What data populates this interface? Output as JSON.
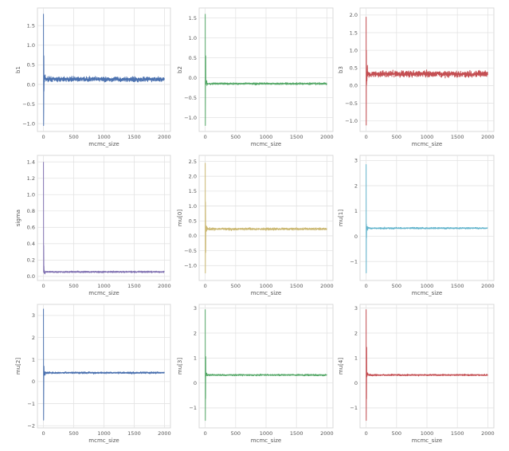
{
  "chart_data": [
    {
      "type": "line",
      "xlabel": "mcmc_size",
      "ylabel": "b1",
      "color": "#4C72B0",
      "xlim": [
        -100,
        2100
      ],
      "ylim": [
        -1.2,
        1.95
      ],
      "xticks": [
        "0",
        "500",
        "1000",
        "1500",
        "2000"
      ],
      "yticks": [
        "-1.0",
        "-0.5",
        "0.0",
        "0.5",
        "1.0",
        "1.5"
      ],
      "n_samples": 2000,
      "burn_in": {
        "max": 1.8,
        "min": -1.05
      },
      "stationary": {
        "mean": 0.13,
        "spread": 0.06
      }
    },
    {
      "type": "line",
      "xlabel": "mcmc_size",
      "ylabel": "b2",
      "color": "#55A868",
      "xlim": [
        -100,
        2100
      ],
      "ylim": [
        -1.35,
        1.75
      ],
      "xticks": [
        "0",
        "500",
        "1000",
        "1500",
        "2000"
      ],
      "yticks": [
        "-1.0",
        "-0.5",
        "0.0",
        "0.5",
        "1.0",
        "1.5"
      ],
      "n_samples": 2000,
      "burn_in": {
        "max": 1.6,
        "min": -1.2
      },
      "stationary": {
        "mean": -0.15,
        "spread": 0.025
      }
    },
    {
      "type": "line",
      "xlabel": "mcmc_size",
      "ylabel": "b3",
      "color": "#C44E52",
      "xlim": [
        -100,
        2100
      ],
      "ylim": [
        -1.3,
        2.2
      ],
      "xticks": [
        "0",
        "500",
        "1000",
        "1500",
        "2000"
      ],
      "yticks": [
        "-1.0",
        "-0.5",
        "0.0",
        "0.5",
        "1.0",
        "1.5",
        "2.0"
      ],
      "n_samples": 2000,
      "burn_in": {
        "max": 1.95,
        "min": -1.12
      },
      "stationary": {
        "mean": 0.33,
        "spread": 0.09
      }
    },
    {
      "type": "line",
      "xlabel": "mcmc_size",
      "ylabel": "sigma",
      "color": "#8172B2",
      "xlim": [
        -100,
        2100
      ],
      "ylim": [
        -0.05,
        1.48
      ],
      "xticks": [
        "0",
        "500",
        "1000",
        "1500",
        "2000"
      ],
      "yticks": [
        "0.0",
        "0.2",
        "0.4",
        "0.6",
        "0.8",
        "1.0",
        "1.2",
        "1.4"
      ],
      "n_samples": 2000,
      "burn_in": {
        "max": 1.4,
        "min": 0.05
      },
      "stationary": {
        "mean": 0.055,
        "spread": 0.01
      }
    },
    {
      "type": "line",
      "xlabel": "mcmc_size",
      "ylabel": "mu[0]",
      "color": "#CCB974",
      "xlim": [
        -100,
        2100
      ],
      "ylim": [
        -1.5,
        2.7
      ],
      "xticks": [
        "0",
        "500",
        "1000",
        "1500",
        "2000"
      ],
      "yticks": [
        "-1.0",
        "-0.5",
        "0.0",
        "0.5",
        "1.0",
        "1.5",
        "2.0",
        "2.5"
      ],
      "n_samples": 2000,
      "burn_in": {
        "max": 2.45,
        "min": -1.25
      },
      "stationary": {
        "mean": 0.23,
        "spread": 0.04
      }
    },
    {
      "type": "line",
      "xlabel": "mcmc_size",
      "ylabel": "mu[1]",
      "color": "#64B5CD",
      "xlim": [
        -100,
        2100
      ],
      "ylim": [
        -1.75,
        3.2
      ],
      "xticks": [
        "0",
        "500",
        "1000",
        "1500",
        "2000"
      ],
      "yticks": [
        "-1",
        "0",
        "1",
        "2",
        "3"
      ],
      "n_samples": 2000,
      "burn_in": {
        "max": 2.85,
        "min": -1.45
      },
      "stationary": {
        "mean": 0.32,
        "spread": 0.03
      }
    },
    {
      "type": "line",
      "xlabel": "mcmc_size",
      "ylabel": "mu[2]",
      "color": "#4C72B0",
      "xlim": [
        -100,
        2100
      ],
      "ylim": [
        -2.1,
        3.5
      ],
      "xticks": [
        "0",
        "500",
        "1000",
        "1500",
        "2000"
      ],
      "yticks": [
        "-2",
        "-1",
        "0",
        "1",
        "2",
        "3"
      ],
      "n_samples": 2000,
      "burn_in": {
        "max": 3.3,
        "min": -1.75
      },
      "stationary": {
        "mean": 0.4,
        "spread": 0.04
      }
    },
    {
      "type": "line",
      "xlabel": "mcmc_size",
      "ylabel": "mu[3]",
      "color": "#55A868",
      "xlim": [
        -100,
        2100
      ],
      "ylim": [
        -1.8,
        3.15
      ],
      "xticks": [
        "0",
        "500",
        "1000",
        "1500",
        "2000"
      ],
      "yticks": [
        "-1",
        "0",
        "1",
        "2",
        "3"
      ],
      "n_samples": 2000,
      "burn_in": {
        "max": 2.95,
        "min": -1.5
      },
      "stationary": {
        "mean": 0.32,
        "spread": 0.03
      }
    },
    {
      "type": "line",
      "xlabel": "mcmc_size",
      "ylabel": "mu[4]",
      "color": "#C44E52",
      "xlim": [
        -100,
        2100
      ],
      "ylim": [
        -1.8,
        3.15
      ],
      "xticks": [
        "0",
        "500",
        "1000",
        "1500",
        "2000"
      ],
      "yticks": [
        "-1",
        "0",
        "1",
        "2",
        "3"
      ],
      "n_samples": 2000,
      "burn_in": {
        "max": 2.95,
        "min": -1.5
      },
      "stationary": {
        "mean": 0.32,
        "spread": 0.03
      }
    }
  ]
}
